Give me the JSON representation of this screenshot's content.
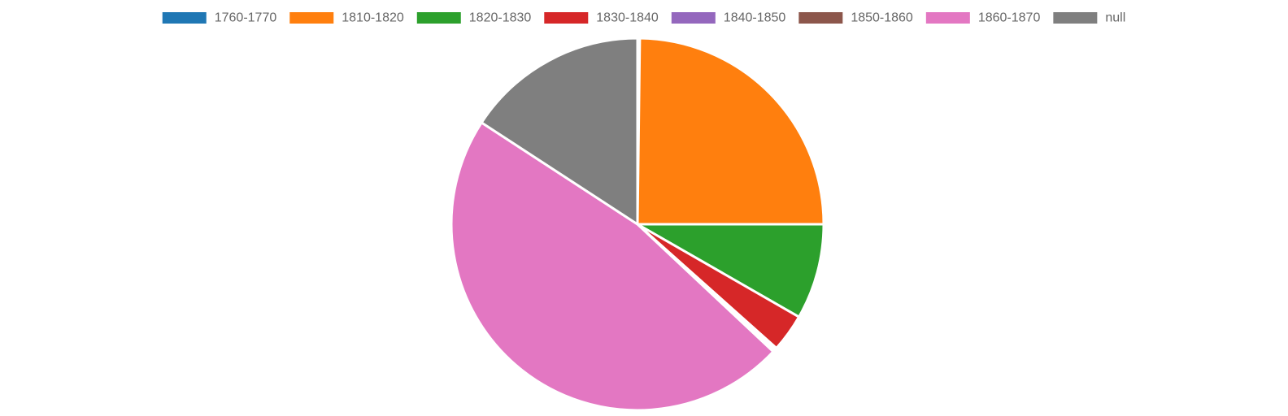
{
  "chart_data": {
    "type": "pie",
    "legend_position": "top",
    "slices": [
      {
        "label": "1760-1770",
        "value": 0.2,
        "color": "#1f77b4"
      },
      {
        "label": "1810-1820",
        "value": 24.8,
        "color": "#ff7f0e"
      },
      {
        "label": "1820-1830",
        "value": 8.3,
        "color": "#2ca02c"
      },
      {
        "label": "1830-1840",
        "value": 3.3,
        "color": "#d62728"
      },
      {
        "label": "1840-1850",
        "value": 0.2,
        "color": "#9467bd"
      },
      {
        "label": "1850-1860",
        "value": 0.2,
        "color": "#8c564b"
      },
      {
        "label": "1860-1870",
        "value": 47.2,
        "color": "#e377c2"
      },
      {
        "label": "null",
        "value": 15.8,
        "color": "#7f7f7f"
      }
    ]
  }
}
